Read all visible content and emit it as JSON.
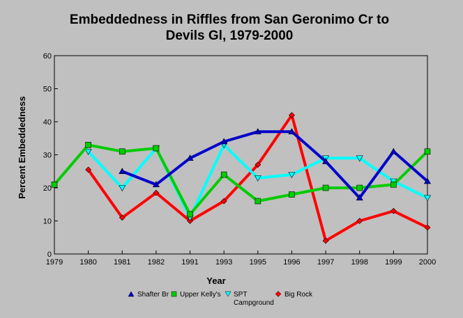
{
  "chart_data": {
    "type": "line",
    "title_line1": "Embeddedness in Riffles from San Geronimo Cr to",
    "title_line2": "Devils Gl, 1979-2000",
    "xlabel": "Year",
    "ylabel": "Percent Embeddedness",
    "categories": [
      "1979",
      "1980",
      "1981",
      "1982",
      "1991",
      "1993",
      "1995",
      "1996",
      "1997",
      "1998",
      "1999",
      "2000"
    ],
    "ylim": [
      0,
      60
    ],
    "yticks": [
      0,
      10,
      20,
      30,
      40,
      50,
      60
    ],
    "grid": false,
    "legend_position": "bottom",
    "series": [
      {
        "name": "Shafter Br",
        "color": "#0000cc",
        "marker": "triangle-up",
        "values": [
          null,
          null,
          25,
          21,
          29,
          34,
          37,
          37,
          28,
          17,
          31,
          22
        ]
      },
      {
        "name": "Upper Kelly's",
        "color": "#00cc00",
        "marker": "square",
        "values": [
          21,
          33,
          31,
          32,
          12,
          24,
          16,
          18,
          20,
          20,
          21,
          31
        ]
      },
      {
        "name": "SPT Campground",
        "name_line1": "SPT",
        "name_line2": "Campground",
        "color": "#00ffff",
        "marker": "triangle-down",
        "values": [
          null,
          31,
          20,
          32,
          11,
          33,
          23,
          24,
          29,
          29,
          22,
          17
        ]
      },
      {
        "name": "Big Rock",
        "color": "#ff0000",
        "marker": "diamond",
        "values": [
          null,
          25.5,
          11,
          18.5,
          10,
          16,
          27,
          42,
          4,
          10,
          13,
          8
        ]
      }
    ]
  }
}
